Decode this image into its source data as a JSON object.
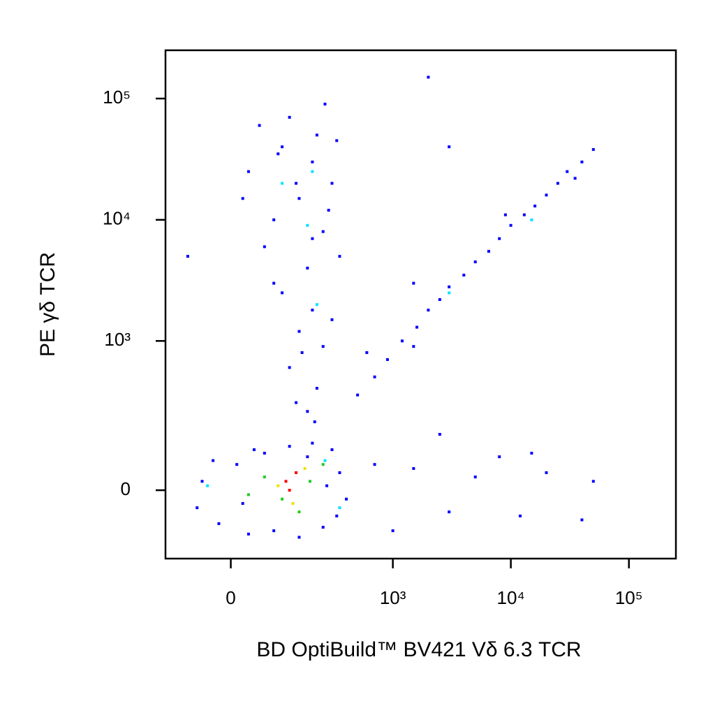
{
  "chart_data": {
    "type": "scatter",
    "scale": "biexponential",
    "xlabel": "BD OptiBuild™ BV421 Vδ 6.3 TCR",
    "ylabel": "PE γδ TCR",
    "xlim": [
      -140,
      250000
    ],
    "ylim": [
      -200,
      250000
    ],
    "xticks": [
      {
        "value": 0,
        "label": "0"
      },
      {
        "value": 1000,
        "label": "10³"
      },
      {
        "value": 10000,
        "label": "10⁴"
      },
      {
        "value": 100000,
        "label": "10⁵"
      }
    ],
    "yticks": [
      {
        "value": 0,
        "label": "0"
      },
      {
        "value": 1000,
        "label": "10³"
      },
      {
        "value": 10000,
        "label": "10⁴"
      },
      {
        "value": 100000,
        "label": "10⁵"
      }
    ],
    "series": [
      {
        "color": "#0000ff",
        "x": [
          -50,
          -20,
          10,
          30,
          60,
          250,
          350,
          400,
          300,
          -30,
          150,
          200,
          20,
          330,
          80,
          -60,
          180,
          120,
          270,
          40,
          50,
          100,
          200,
          300,
          150,
          80,
          250,
          350,
          30,
          120,
          220,
          60,
          280,
          180,
          90,
          330,
          20,
          260,
          140,
          200,
          100,
          200,
          150,
          250,
          120,
          220,
          180,
          80,
          300,
          160,
          210,
          140,
          500,
          700,
          900,
          1200,
          1600,
          2000,
          2500,
          3000,
          4000,
          5000,
          6500,
          8000,
          10000,
          13000,
          16000,
          20000,
          25000,
          30000,
          40000,
          50000,
          600,
          1500,
          9000,
          35000,
          1500,
          3000,
          5000,
          8000,
          12000,
          20000,
          40000,
          700,
          1000,
          15000,
          2500,
          50000,
          2000,
          3000,
          1500,
          -80
        ],
        "y": [
          20,
          -80,
          60,
          -110,
          90,
          -90,
          40,
          -20,
          100,
          70,
          -120,
          120,
          -30,
          -60,
          -100,
          -40,
          80,
          110,
          10,
          100,
          60000,
          40000,
          30000,
          20000,
          15000,
          10000,
          8000,
          5000,
          25000,
          70000,
          50000,
          6000,
          12000,
          4000,
          35000,
          45000,
          15000,
          90000,
          20000,
          7000,
          2500,
          1800,
          1200,
          900,
          600,
          400,
          250,
          3000,
          1500,
          800,
          200,
          300,
          350,
          500,
          700,
          1000,
          1300,
          1800,
          2200,
          2800,
          3500,
          4500,
          5500,
          7000,
          9000,
          11000,
          13000,
          16000,
          20000,
          25000,
          30000,
          38000,
          800,
          900,
          11000,
          22000,
          50,
          -50,
          30,
          80,
          -60,
          40,
          -70,
          60,
          -100,
          90,
          150,
          20,
          150000,
          40000,
          3000,
          5000
        ]
      },
      {
        "color": "#00e5ff",
        "x": [
          100,
          200,
          180,
          350,
          -40,
          220,
          15000,
          3000,
          260
        ],
        "y": [
          20000,
          25000,
          9000,
          -40,
          10,
          2000,
          10000,
          2500,
          70
        ]
      },
      {
        "color": "#22cc22",
        "x": [
          60,
          150,
          250,
          100,
          190,
          30
        ],
        "y": [
          30,
          -50,
          60,
          -20,
          20,
          -10
        ]
      },
      {
        "color": "#f0e000",
        "x": [
          90,
          170,
          130
        ],
        "y": [
          10,
          50,
          -30
        ]
      },
      {
        "color": "#ff0000",
        "x": [
          110,
          140,
          120
        ],
        "y": [
          20,
          40,
          0
        ]
      }
    ]
  }
}
